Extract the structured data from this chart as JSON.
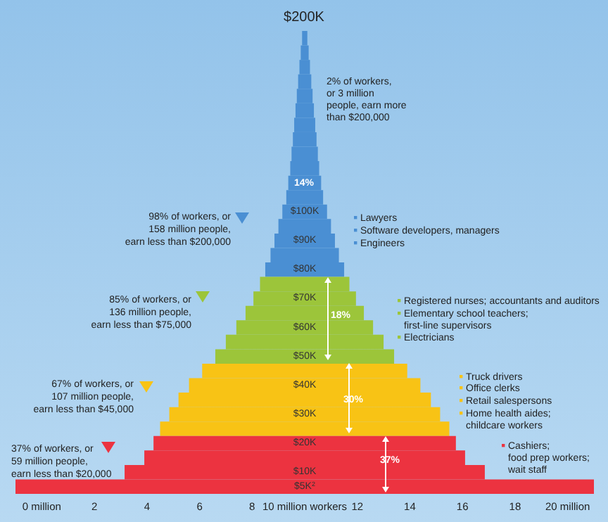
{
  "chart_data": {
    "type": "bar",
    "orientation": "horizontal",
    "categories": [
      null,
      null,
      null,
      null,
      null,
      null,
      null,
      null,
      null,
      null,
      null,
      null,
      "$100K",
      null,
      "$90K",
      null,
      "$80K",
      null,
      "$70K",
      null,
      "$60K",
      null,
      "$50K",
      null,
      "$40K",
      null,
      "$30K",
      null,
      "$20K",
      null,
      "$10K",
      "$5K$^{2}$"
    ],
    "base": [
      9.9,
      9.85,
      9.8,
      9.75,
      9.7,
      9.65,
      9.6,
      9.55,
      9.5,
      9.45,
      9.375,
      9.3,
      9.15,
      9.0,
      8.85,
      8.7,
      8.5,
      8.3,
      8.05,
      7.75,
      7.4,
      7.0,
      6.6,
      6.1,
      5.6,
      5.2,
      4.85,
      4.5,
      4.25,
      3.9,
      3.15,
      -1.0
    ],
    "values": [
      0.2,
      0.3,
      0.4,
      0.5,
      0.6,
      0.7,
      0.8,
      0.9,
      1.0,
      1.1,
      1.25,
      1.4,
      1.7,
      2.0,
      2.3,
      2.6,
      3.0,
      3.4,
      3.9,
      4.5,
      5.2,
      6.0,
      6.8,
      7.8,
      8.8,
      9.6,
      10.3,
      11.0,
      11.5,
      12.2,
      13.7,
      22.0
    ],
    "colors": [
      "#4a8fd3",
      "#4a8fd3",
      "#4a8fd3",
      "#4a8fd3",
      "#4a8fd3",
      "#4a8fd3",
      "#4a8fd3",
      "#4a8fd3",
      "#4a8fd3",
      "#4a8fd3",
      "#4a8fd3",
      "#4a8fd3",
      "#4a8fd3",
      "#4a8fd3",
      "#4a8fd3",
      "#4a8fd3",
      "#4a8fd3",
      "#9cc53a",
      "#9cc53a",
      "#9cc53a",
      "#9cc53a",
      "#9cc53a",
      "#9cc53a",
      "#f8c315",
      "#f8c315",
      "#f8c315",
      "#f8c315",
      "#f8c315",
      "#ec3340",
      "#ec3340",
      "#ec3340",
      "#ec3340"
    ],
    "xlim": [
      -1,
      21
    ],
    "xticks": [
      {
        "value": 0,
        "label": "0 million"
      },
      2,
      4,
      6,
      8,
      {
        "value": 10,
        "label": "10 million workers"
      },
      12,
      14,
      16,
      18,
      {
        "value": 20,
        "label": "20 million"
      }
    ],
    "grid": false,
    "annotations": [
      "$200K",
      "2% of workers,\nor 3 million\npeople, earn more\nthan $200,000",
      "14%",
      "98% of workers, or\n158 million people,\nearn less than $200,000",
      "Lawyers",
      "Software developers, managers",
      "Engineers",
      "18%",
      "85% of workers, or\n136 million people,\nearn less than $75,000",
      "Registered nurses; accountants and auditors",
      "Elementary school teachers;\nfirst-line supervisors",
      "Electricians",
      "30%",
      "67% of workers, or\n107 million people,\nearn less than $45,000",
      "Truck drivers",
      "Office clerks",
      "Retail salespersons",
      "Home health aides;\nchildcare workers",
      "37%",
      "37% of workers, or\n59 million people,\nearn less than $20,000",
      "Cashiers;\nfood prep workers;\nwait staff"
    ]
  }
}
